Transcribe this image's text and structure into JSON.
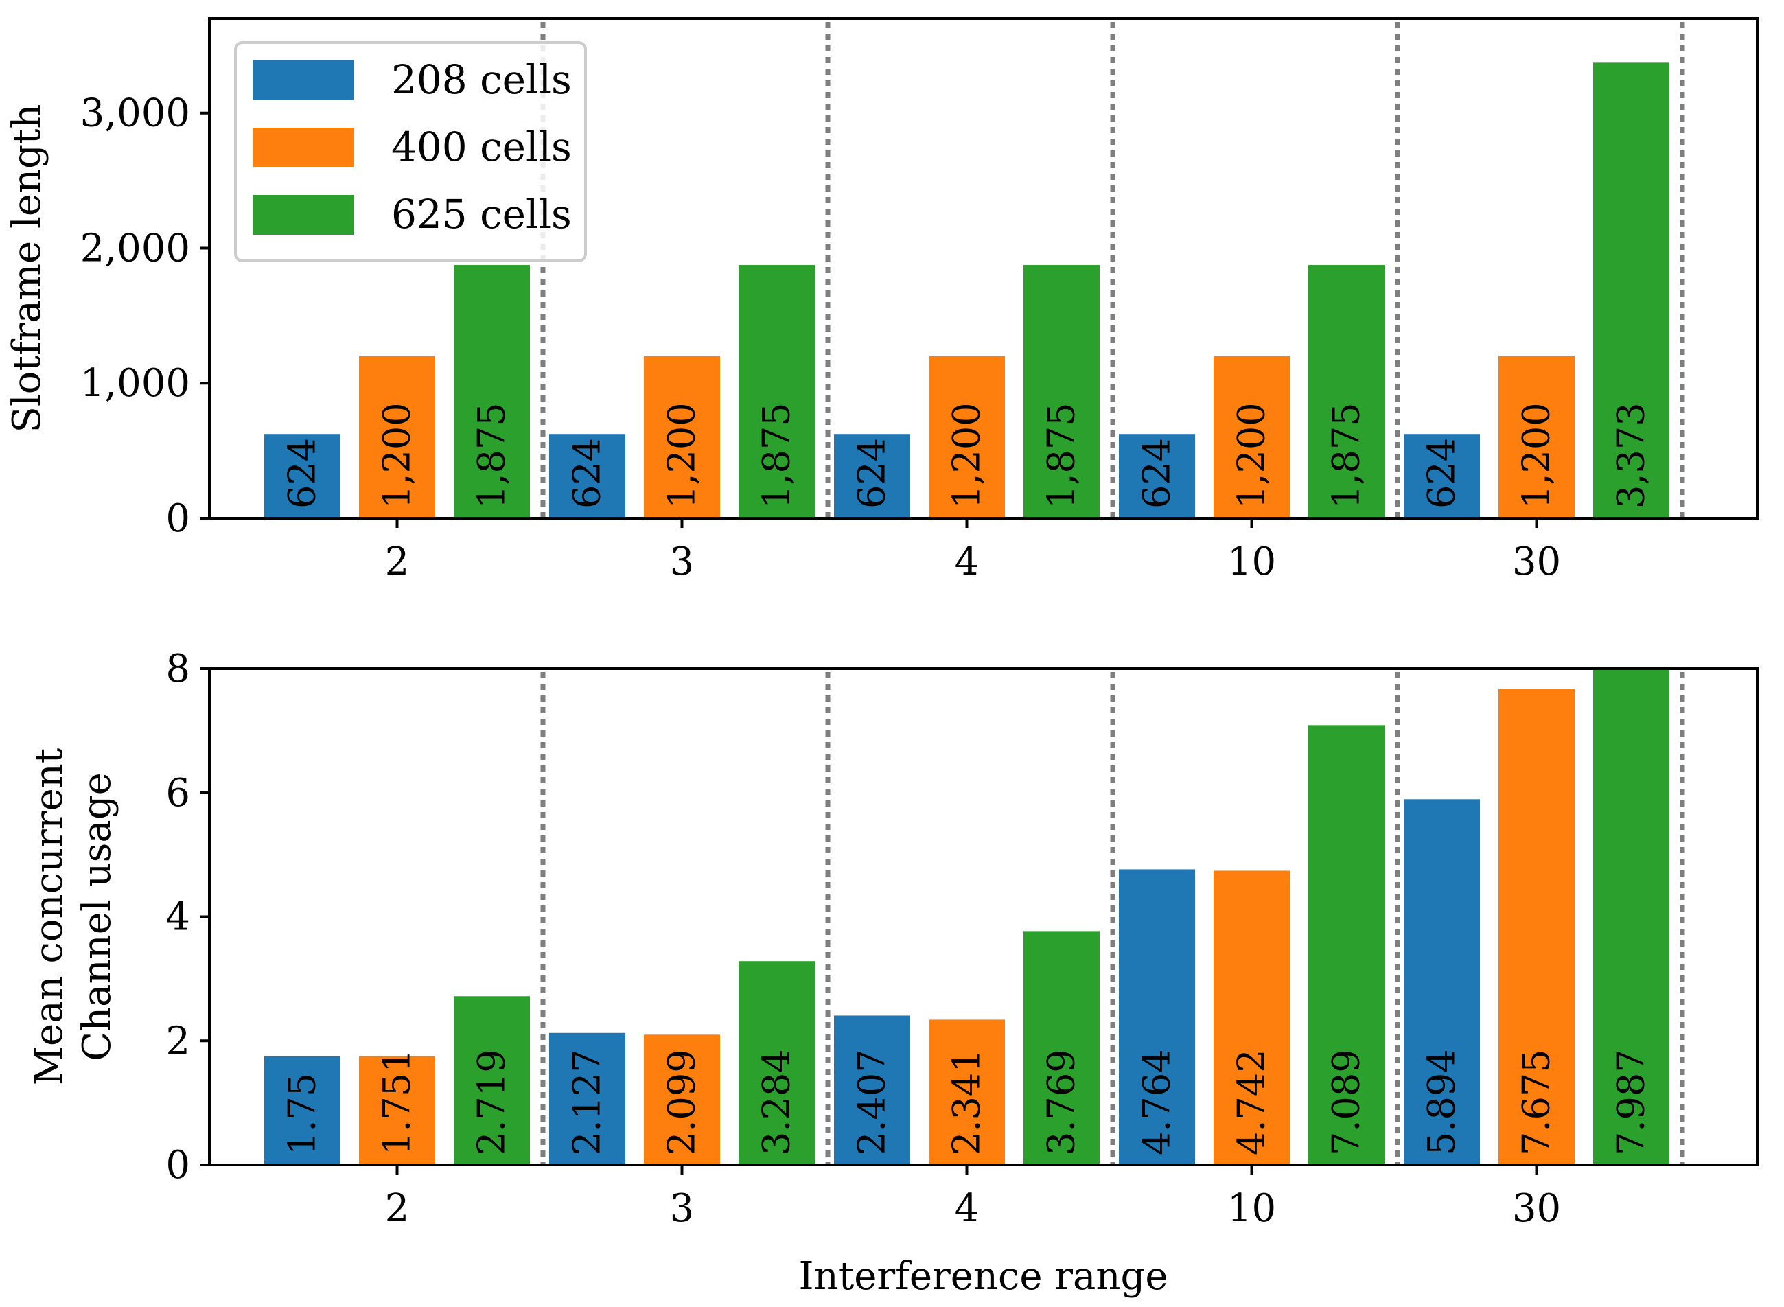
{
  "chart_data": [
    {
      "type": "bar",
      "categories": [
        "2",
        "3",
        "4",
        "10",
        "30"
      ],
      "series": [
        {
          "name": "208 cells",
          "color": "#1f77b4",
          "values": [
            624,
            624,
            624,
            624,
            624
          ],
          "labels": [
            "624",
            "624",
            "624",
            "624",
            "624"
          ]
        },
        {
          "name": "400 cells",
          "color": "#ff7f0e",
          "values": [
            1200,
            1200,
            1200,
            1200,
            1200
          ],
          "labels": [
            "1,200",
            "1,200",
            "1,200",
            "1,200",
            "1,200"
          ]
        },
        {
          "name": "625 cells",
          "color": "#2ca02c",
          "values": [
            1875,
            1875,
            1875,
            1875,
            3373
          ],
          "labels": [
            "1,875",
            "1,875",
            "1,875",
            "1,875",
            "3,373"
          ]
        }
      ],
      "xlabel": "",
      "ylabel": "Slotframe length",
      "ylim": [
        0,
        3700
      ],
      "yticks": [
        0,
        1000,
        2000,
        3000
      ],
      "ytick_labels": [
        "0",
        "1,000",
        "2,000",
        "3,000"
      ],
      "legend": "top-left",
      "separators": "dotted"
    },
    {
      "type": "bar",
      "categories": [
        "2",
        "3",
        "4",
        "10",
        "30"
      ],
      "series": [
        {
          "name": "208 cells",
          "color": "#1f77b4",
          "values": [
            1.75,
            2.127,
            2.407,
            4.764,
            5.894
          ],
          "labels": [
            "1.75",
            "2.127",
            "2.407",
            "4.764",
            "5.894"
          ]
        },
        {
          "name": "400 cells",
          "color": "#ff7f0e",
          "values": [
            1.751,
            2.099,
            2.341,
            4.742,
            7.675
          ],
          "labels": [
            "1.751",
            "2.099",
            "2.341",
            "4.742",
            "7.675"
          ]
        },
        {
          "name": "625 cells",
          "color": "#2ca02c",
          "values": [
            2.719,
            3.284,
            3.769,
            7.089,
            7.987
          ],
          "labels": [
            "2.719",
            "3.284",
            "3.769",
            "7.089",
            "7.987"
          ]
        }
      ],
      "xlabel": "Interference range",
      "ylabel_lines": [
        "Mean concurrent",
        "Channel usage"
      ],
      "ylim": [
        0,
        8
      ],
      "yticks": [
        0,
        2,
        4,
        6,
        8
      ],
      "ytick_labels": [
        "0",
        "2",
        "4",
        "6",
        "8"
      ],
      "separators": "dotted"
    }
  ]
}
